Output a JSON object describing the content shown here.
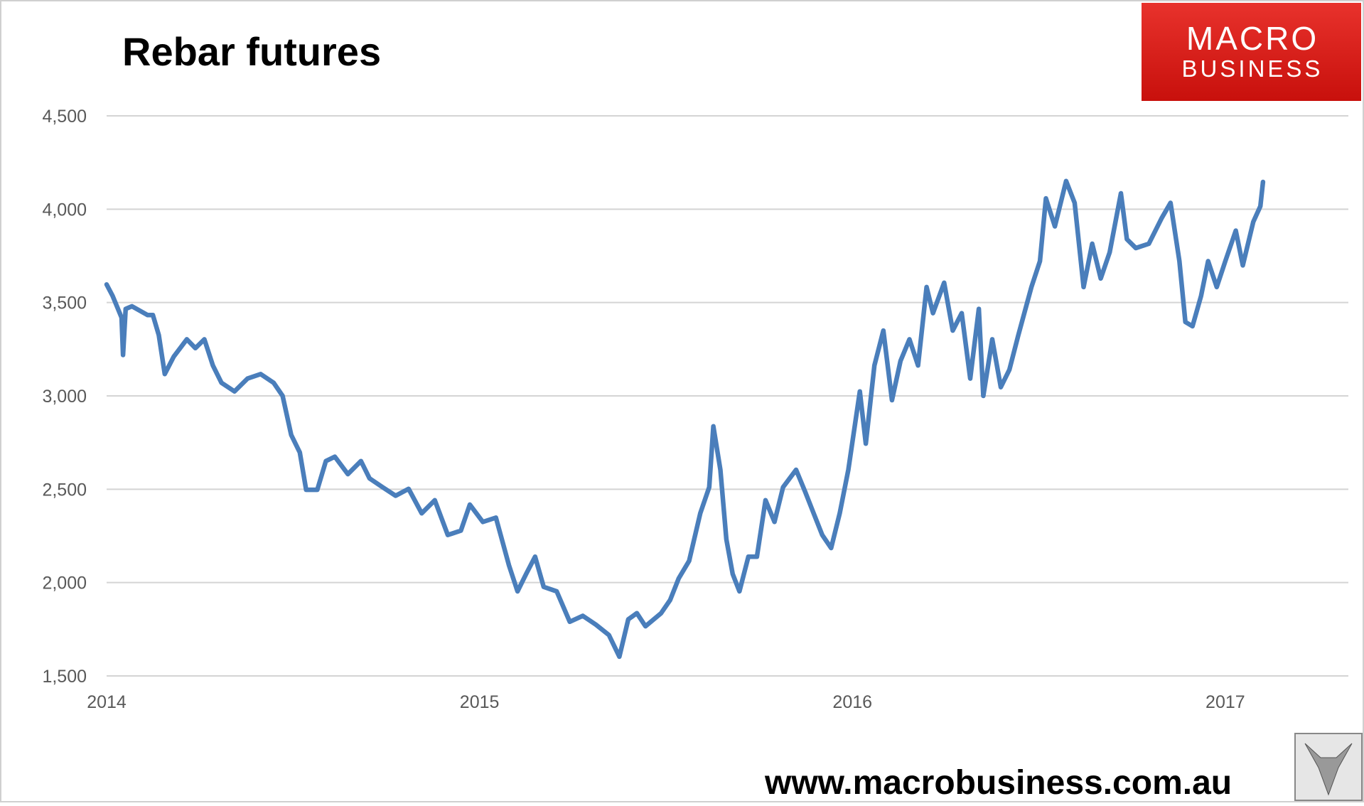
{
  "chart_data": {
    "type": "line",
    "title": "Rebar futures",
    "x": [
      2014.0,
      2014.016,
      2014.04,
      2014.044,
      2014.051,
      2014.068,
      2014.11,
      2014.124,
      2014.14,
      2014.156,
      2014.18,
      2014.215,
      2014.238,
      2014.262,
      2014.285,
      2014.308,
      2014.343,
      2014.378,
      2014.413,
      2014.448,
      2014.472,
      2014.495,
      2014.518,
      2014.535,
      2014.565,
      2014.588,
      2014.612,
      2014.647,
      2014.682,
      2014.705,
      2014.74,
      2014.775,
      2014.81,
      2014.845,
      2014.88,
      2014.915,
      2014.95,
      2014.974,
      2015.009,
      2015.044,
      2015.079,
      2015.102,
      2015.125,
      2015.149,
      2015.172,
      2015.207,
      2015.242,
      2015.277,
      2015.312,
      2015.347,
      2015.375,
      2015.399,
      2015.422,
      2015.445,
      2015.487,
      2015.511,
      2015.534,
      2015.562,
      2015.592,
      2015.616,
      2015.627,
      2015.646,
      2015.662,
      2015.679,
      2015.697,
      2015.721,
      2015.744,
      2015.767,
      2015.791,
      2015.814,
      2015.849,
      2015.873,
      2015.896,
      2015.919,
      2015.943,
      2015.966,
      2015.989,
      2016.02,
      2016.036,
      2016.059,
      2016.083,
      2016.106,
      2016.129,
      2016.153,
      2016.176,
      2016.199,
      2016.216,
      2016.246,
      2016.269,
      2016.293,
      2016.316,
      2016.339,
      2016.351,
      2016.375,
      2016.398,
      2016.421,
      2016.445,
      2016.48,
      2016.503,
      2016.519,
      2016.543,
      2016.573,
      2016.596,
      2016.62,
      2016.643,
      2016.666,
      2016.69,
      2016.72,
      2016.736,
      2016.76,
      2016.795,
      2016.83,
      2016.853,
      2016.877,
      2016.893,
      2016.912,
      2016.935,
      2016.954,
      2016.977,
      2017.0,
      2017.028,
      2017.047,
      2017.075,
      2017.094,
      2017.101
    ],
    "values": [
      3597,
      3536,
      3420,
      3219,
      3466,
      3480,
      3433,
      3433,
      3326,
      3117,
      3210,
      3303,
      3256,
      3303,
      3163,
      3070,
      3024,
      3093,
      3117,
      3070,
      3000,
      2791,
      2697,
      2497,
      2497,
      2651,
      2674,
      2581,
      2651,
      2558,
      2511,
      2465,
      2502,
      2371,
      2441,
      2255,
      2278,
      2418,
      2325,
      2348,
      2092,
      1953,
      2046,
      2139,
      1977,
      1953,
      1790,
      1822,
      1775,
      1719,
      1603,
      1803,
      1836,
      1766,
      1836,
      1906,
      2022,
      2116,
      2371,
      2511,
      2837,
      2604,
      2232,
      2046,
      1953,
      2139,
      2139,
      2441,
      2325,
      2511,
      2604,
      2488,
      2371,
      2255,
      2185,
      2371,
      2604,
      3024,
      2744,
      3163,
      3350,
      2977,
      3187,
      3303,
      3163,
      3583,
      3443,
      3606,
      3350,
      3443,
      3093,
      3466,
      3000,
      3303,
      3047,
      3140,
      3326,
      3583,
      3722,
      4058,
      3908,
      4151,
      4034,
      3583,
      3815,
      3629,
      3769,
      4085,
      3839,
      3792,
      3815,
      3955,
      4034,
      3722,
      3396,
      3373,
      3536,
      3722,
      3583,
      3722,
      3885,
      3699,
      3932,
      4016,
      4146
    ],
    "color": "#4a7ebb",
    "xlim": [
      2014,
      2017.33
    ],
    "xticks": [
      2014,
      2015,
      2016,
      2017
    ],
    "ylim": [
      1500,
      4500
    ],
    "yticks": [
      {
        "value": 1500,
        "label": "1,500"
      },
      {
        "value": 2000,
        "label": "2,000"
      },
      {
        "value": 2500,
        "label": "2,500"
      },
      {
        "value": 3000,
        "label": "3,000"
      },
      {
        "value": 3500,
        "label": "3,500"
      },
      {
        "value": 4000,
        "label": "4,000"
      },
      {
        "value": 4500,
        "label": "4,500"
      }
    ],
    "grid": true
  },
  "branding": {
    "logo_line1": "MACRO",
    "logo_line2": "BUSINESS",
    "url": "www.macrobusiness.com.au"
  }
}
